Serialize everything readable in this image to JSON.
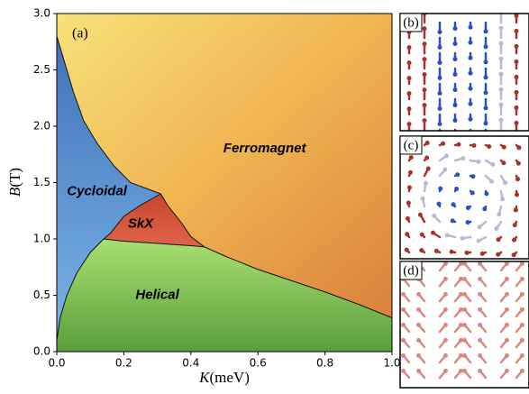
{
  "chart_data": {
    "type": "phase",
    "panel_label": "(a)",
    "xlabel_symbol": "K",
    "xlabel_unit": "(meV)",
    "ylabel_symbol": "B",
    "ylabel_unit": "(T)",
    "xlim": [
      0,
      1
    ],
    "xticks": [
      {
        "value": 0,
        "label": "0.0"
      },
      0.2,
      0.4,
      0.6,
      0.8,
      {
        "value": 1,
        "label": "1.0"
      }
    ],
    "ylim": [
      0,
      3
    ],
    "yticks": [
      {
        "value": 0,
        "label": "0.0"
      },
      0.5,
      {
        "value": 1,
        "label": "1.0"
      },
      1.5,
      {
        "value": 2,
        "label": "2.0"
      },
      2.5,
      {
        "value": 3,
        "label": "3.0"
      }
    ],
    "regions": [
      "Ferromagnet",
      "Cycloidal",
      "SkX",
      "Helical"
    ],
    "boundaries": [
      {
        "x": [
          0,
          0.02,
          0.05,
          0.08,
          0.12,
          0.17,
          0.22,
          0.31
        ],
        "y": [
          2.8,
          2.6,
          2.3,
          2.05,
          1.85,
          1.65,
          1.5,
          1.4
        ]
      },
      {
        "x": [
          0.31,
          0.33,
          0.37,
          0.4,
          0.44
        ],
        "y": [
          1.4,
          1.3,
          1.15,
          1.02,
          0.93
        ]
      },
      {
        "x": [
          0.31,
          0.25,
          0.2,
          0.16,
          0.14
        ],
        "y": [
          1.4,
          1.3,
          1.2,
          1.05,
          1.0
        ]
      },
      {
        "x": [
          0.14,
          0.2,
          0.3,
          0.4,
          0.44
        ],
        "y": [
          1.0,
          0.98,
          0.96,
          0.94,
          0.93
        ]
      },
      {
        "x": [
          0.44,
          0.5,
          0.6,
          0.7,
          0.8,
          0.9,
          1.0
        ],
        "y": [
          0.93,
          0.85,
          0.73,
          0.63,
          0.53,
          0.42,
          0.3
        ]
      },
      {
        "x": [
          0,
          0.01,
          0.03,
          0.06,
          0.1,
          0.14
        ],
        "y": [
          0.1,
          0.3,
          0.5,
          0.7,
          0.88,
          1.0
        ]
      }
    ]
  },
  "insets": {
    "labels": [
      "(b)",
      "(c)",
      "(d)"
    ]
  }
}
